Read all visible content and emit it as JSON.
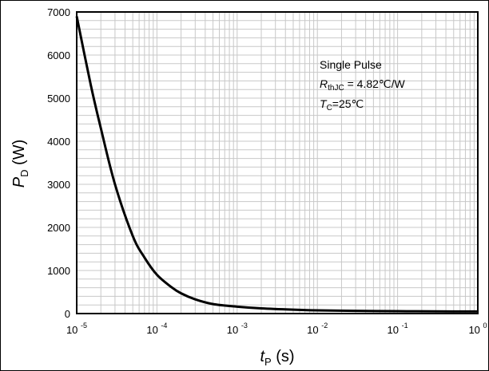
{
  "chart_data": {
    "type": "line",
    "x_scale": "log",
    "xlim": [
      1e-05,
      1
    ],
    "ylim": [
      0,
      7000
    ],
    "grid": true,
    "x": [
      1e-05,
      1.5e-05,
      2e-05,
      3e-05,
      5e-05,
      7e-05,
      0.0001,
      0.00015,
      0.0002,
      0.0003,
      0.0005,
      0.001,
      0.002,
      0.005,
      0.01,
      0.03,
      0.1,
      0.3,
      1
    ],
    "series": [
      {
        "values": [
          6900,
          5300,
          4300,
          3000,
          1800,
          1300,
          900,
          620,
          470,
          330,
          220,
          160,
          120,
          90,
          75,
          62,
          55,
          50,
          48
        ]
      }
    ],
    "y_ticks": [
      "0",
      "1000",
      "2000",
      "3000",
      "4000",
      "5000",
      "6000",
      "7000"
    ],
    "x_ticks": [
      {
        "base": "10",
        "exp": "-5"
      },
      {
        "base": "10",
        "exp": "-4"
      },
      {
        "base": "10",
        "exp": "-3"
      },
      {
        "base": "10",
        "exp": "-2"
      },
      {
        "base": "10",
        "exp": "-1"
      },
      {
        "base": "10",
        "exp": "0"
      }
    ],
    "xlabel": {
      "symbol": "t",
      "subscript": "P",
      "unit": " (s)"
    },
    "ylabel": {
      "symbol": "P",
      "subscript": "D",
      "unit": " (W)"
    },
    "annotations": {
      "line1": "Single Pulse",
      "line2": {
        "symbol": "R",
        "subscript": "thJC",
        "text": " = 4.82℃/W"
      },
      "line3": {
        "symbol": "T",
        "subscript": "C",
        "text": "=25℃"
      }
    },
    "colors": {
      "curve": "#000000",
      "grid": "#c8c8c8",
      "axes": "#000000"
    }
  }
}
